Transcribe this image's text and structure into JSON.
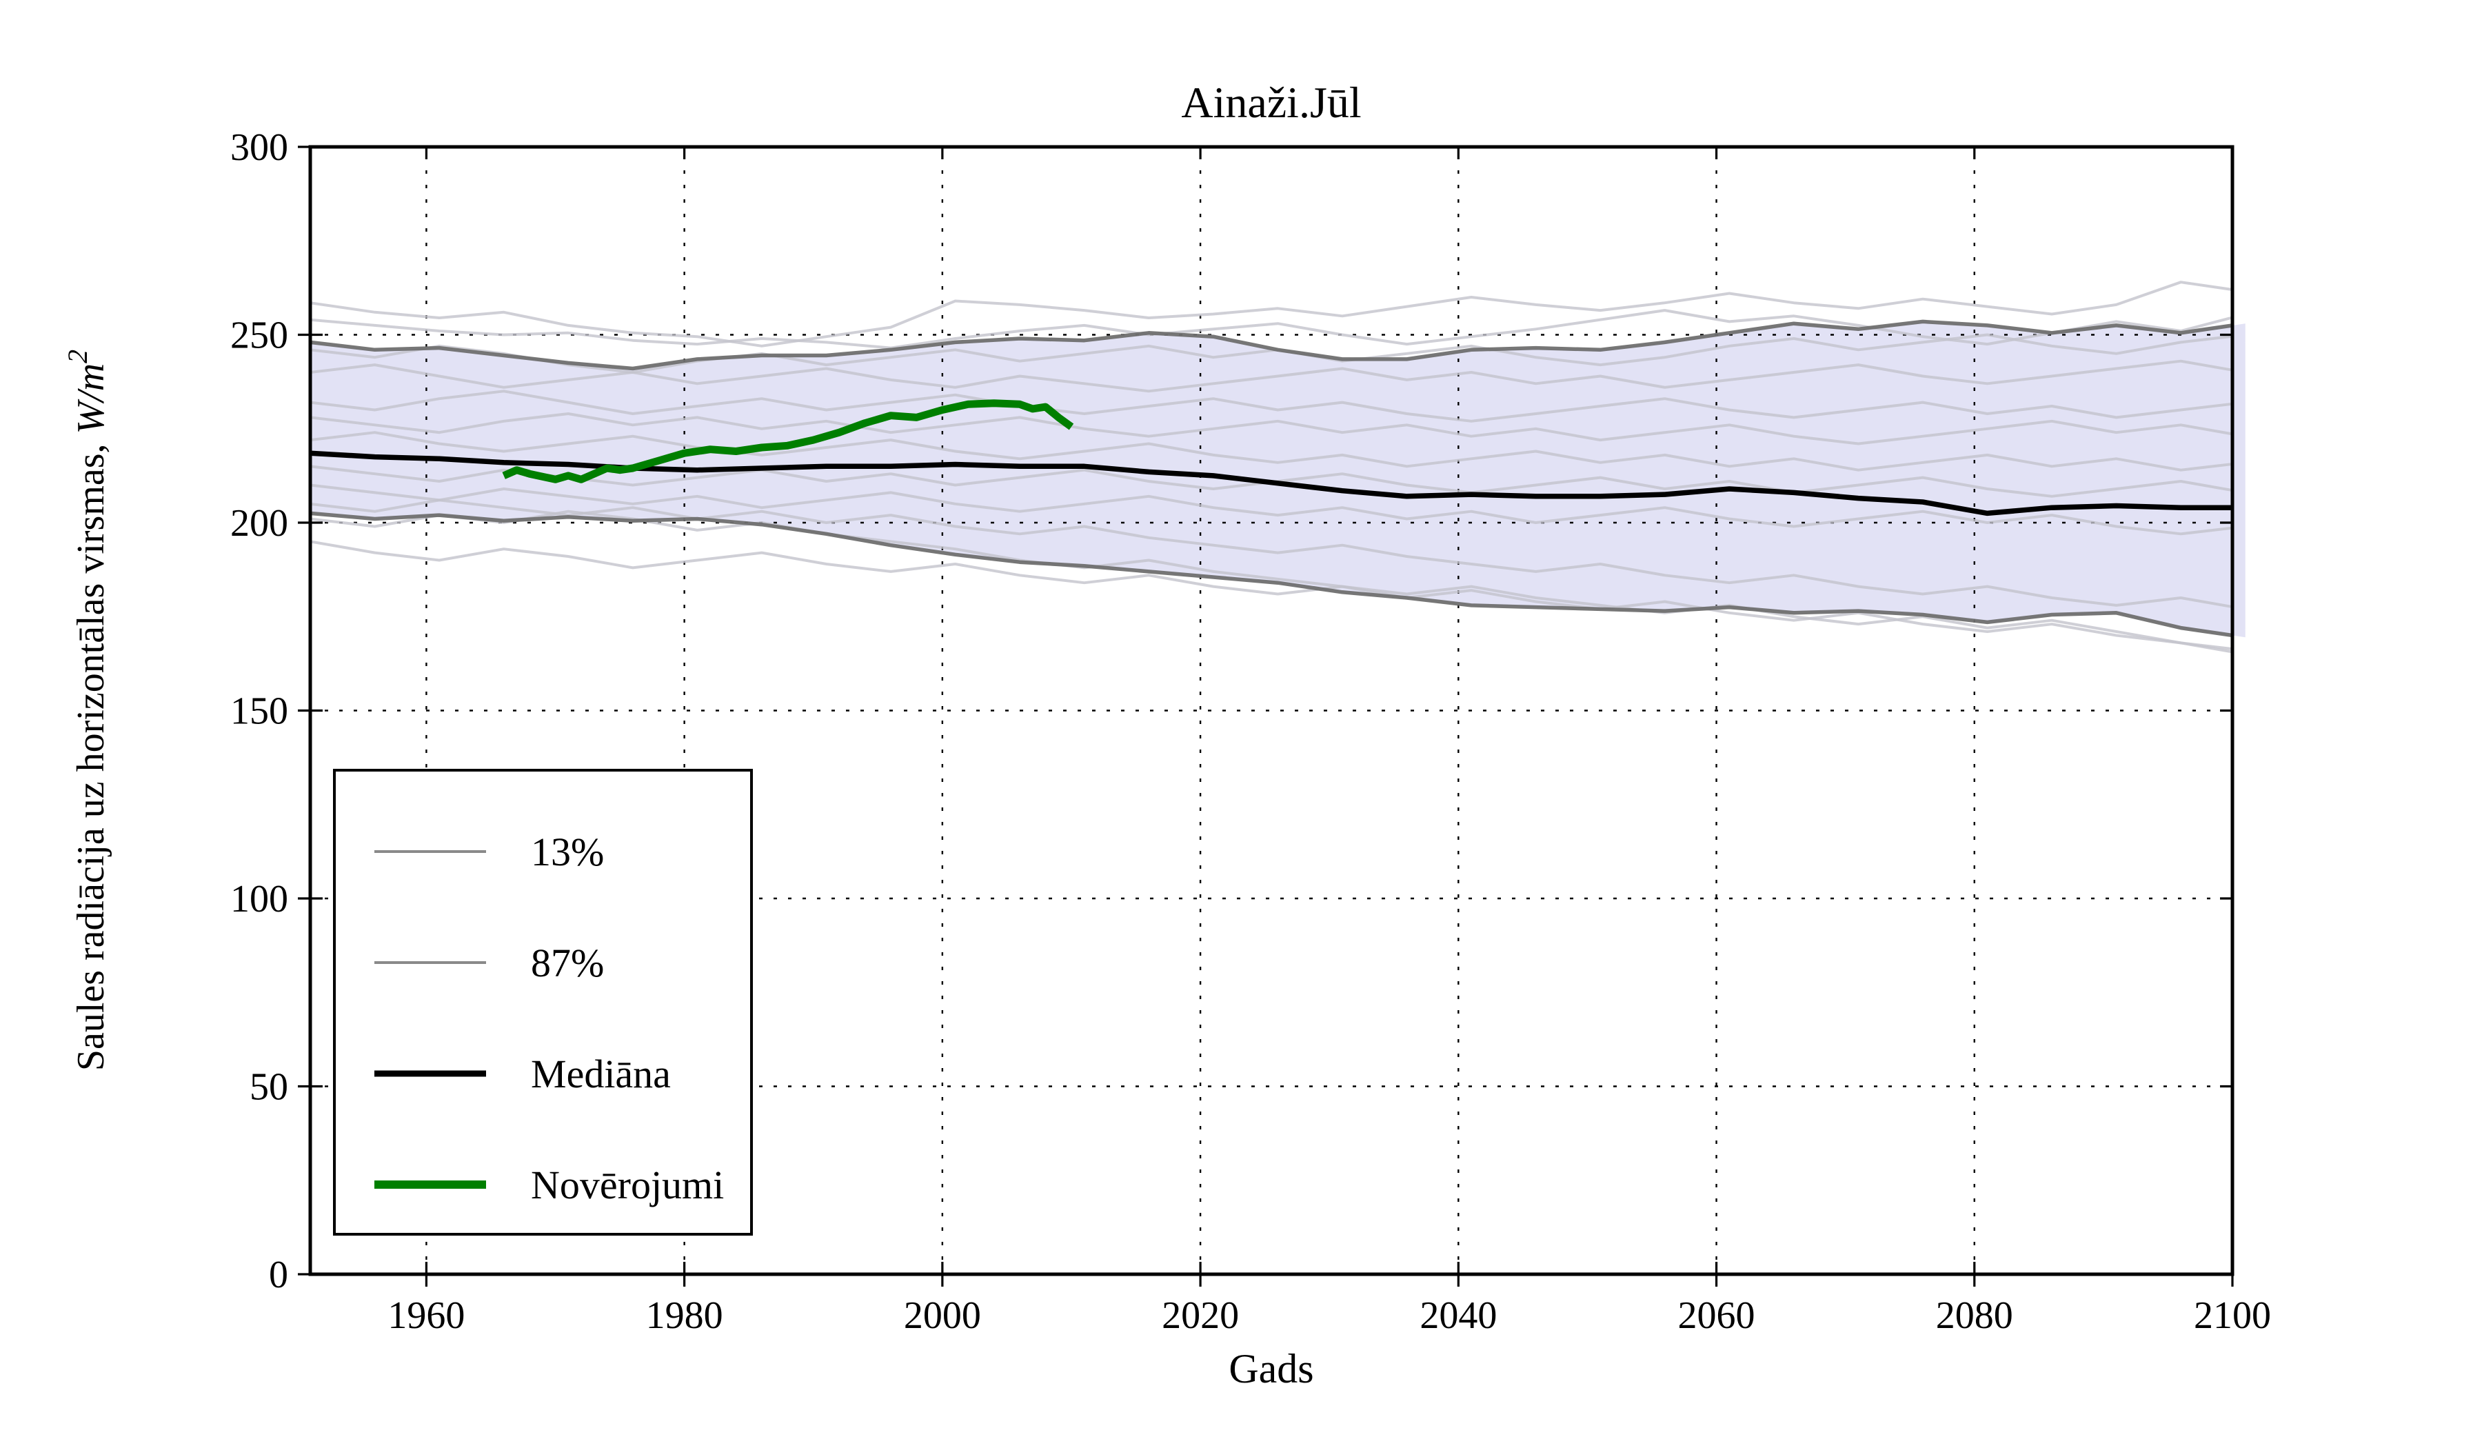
{
  "figure": {
    "title": "Ainaži.Jūl",
    "xlabel": "Gads",
    "ylabel_text": "Saules radiācija uz horizontālas virsmas, ",
    "ylabel_math": "W/m",
    "ylabel_exponent": "2"
  },
  "axes": {
    "xlim": [
      1951,
      2100
    ],
    "ylim": [
      0,
      300
    ],
    "xtick_labels": [
      "1960",
      "1980",
      "2000",
      "2020",
      "2040",
      "2060",
      "2080",
      "2100"
    ],
    "xticks": [
      1960,
      1980,
      2000,
      2020,
      2040,
      2060,
      2080,
      2100
    ],
    "ytick_labels": [
      "0",
      "50",
      "100",
      "150",
      "200",
      "250",
      "300"
    ],
    "yticks": [
      0,
      50,
      100,
      150,
      200,
      250,
      300
    ],
    "grid": true,
    "grid_style": "dotted"
  },
  "legend": {
    "position": "lower left",
    "entries": [
      {
        "label": "13%",
        "color": "#8a8a8a",
        "line_width": 4
      },
      {
        "label": "87%",
        "color": "#8a8a8a",
        "line_width": 4
      },
      {
        "label": "Mediāna",
        "color": "#000000",
        "line_width": 9
      },
      {
        "label": "Novērojumi",
        "color": "#007f00",
        "line_width": 12
      }
    ]
  },
  "colors": {
    "background": "#ffffff",
    "band_fill": "#e2e2f5",
    "percentile_line": "#6f6f6f",
    "ensemble_line": "#c3c3cc",
    "median_line": "#000000",
    "observations_line": "#007f00",
    "grid_line": "#000000",
    "frame": "#000000"
  },
  "chart_data": {
    "type": "line",
    "title": "Ainaži.Jūl",
    "xlabel": "Gads",
    "ylabel": "Saules radiācija uz horizontālas virsmas, W/m2",
    "xlim": [
      1951,
      2100
    ],
    "ylim": [
      0,
      300
    ],
    "legend_position": "lower left",
    "grid": true,
    "years_start": 1951,
    "years_step": 5,
    "band": {
      "between": [
        "87%",
        "13%"
      ],
      "fill": "#e2e2f5"
    },
    "percentile_13": [
      202.5,
      201,
      202,
      200.5,
      201.5,
      200.5,
      201,
      199.5,
      197,
      194,
      191.5,
      189.5,
      188.5,
      187,
      185.5,
      184,
      181.5,
      180,
      178,
      177.5,
      177,
      176.5,
      177.5,
      176,
      176.5,
      175.5,
      173.5,
      175.5,
      176,
      172,
      169.5
    ],
    "percentile_87": [
      248,
      246,
      246.5,
      244.5,
      242.5,
      241,
      243.5,
      244.5,
      244.5,
      246,
      248,
      249,
      248.5,
      250.5,
      249.5,
      246,
      243.5,
      243.5,
      246,
      246.5,
      246,
      248,
      250.5,
      253,
      251.5,
      253.5,
      252.5,
      250.5,
      252.5,
      250.5,
      253
    ],
    "median": [
      218.5,
      217.5,
      217,
      216,
      215.5,
      214.5,
      214,
      214.5,
      215,
      215,
      215.5,
      215,
      215,
      213.5,
      212.5,
      210.5,
      208.5,
      207,
      207.5,
      207,
      207,
      207.5,
      209,
      208,
      206.5,
      205.5,
      202.5,
      204,
      204.5,
      204,
      204
    ],
    "observations_years": [
      1966,
      1967,
      1968,
      1970,
      1971,
      1972,
      1973,
      1974,
      1975,
      1976,
      1978,
      1980,
      1982,
      1984,
      1986,
      1988,
      1990,
      1992,
      1994,
      1996,
      1998,
      2000,
      2002,
      2004,
      2006,
      2007,
      2008,
      2009,
      2010
    ],
    "observations": [
      212.5,
      214,
      213,
      211.5,
      212.5,
      211.5,
      213,
      214.5,
      214,
      214.5,
      216.5,
      218.5,
      219.5,
      219,
      220,
      220.5,
      222,
      224,
      226.5,
      228.5,
      228,
      230,
      231.5,
      231.8,
      231.5,
      230.3,
      230.8,
      228,
      225.5
    ],
    "ensemble_members": [
      [
        258.5,
        256,
        254.5,
        256,
        252.5,
        250.5,
        249.5,
        247,
        249.5,
        252,
        259,
        258,
        256.5,
        254.5,
        255.5,
        257,
        255,
        257.5,
        260,
        258,
        256.5,
        258.5,
        261,
        258.5,
        257,
        259.5,
        257.5,
        255.5,
        258,
        264,
        261.5
      ],
      [
        254,
        252.5,
        251,
        250,
        250.5,
        248.5,
        247.5,
        249,
        248,
        246.5,
        249,
        251,
        252.5,
        250,
        251.5,
        253,
        250,
        247.5,
        249.5,
        251.5,
        254,
        256.5,
        253.5,
        255,
        252.5,
        249.5,
        247.5,
        250.5,
        253.5,
        251,
        255.5
      ],
      [
        246,
        244,
        247,
        245,
        242,
        240,
        243,
        245,
        242,
        244,
        246,
        243,
        245,
        247,
        244,
        246,
        243,
        245,
        247,
        244,
        242,
        244,
        247,
        249,
        246,
        248,
        250,
        247,
        245,
        248,
        250
      ],
      [
        240,
        242,
        239,
        236,
        238,
        240,
        237,
        239,
        241,
        238,
        236,
        239,
        237,
        235,
        237,
        239,
        241,
        238,
        240,
        237,
        239,
        236,
        238,
        240,
        242,
        239,
        237,
        239,
        241,
        243,
        240
      ],
      [
        232,
        230,
        233,
        235,
        232,
        229,
        231,
        233,
        230,
        232,
        234,
        231,
        229,
        231,
        233,
        230,
        232,
        229,
        227,
        229,
        231,
        233,
        230,
        228,
        230,
        232,
        229,
        231,
        228,
        230,
        232
      ],
      [
        228,
        226,
        224,
        227,
        229,
        226,
        228,
        225,
        227,
        224,
        226,
        228,
        225,
        223,
        225,
        227,
        224,
        226,
        223,
        225,
        222,
        224,
        226,
        223,
        221,
        223,
        225,
        227,
        224,
        226,
        223
      ],
      [
        222,
        224,
        221,
        219,
        221,
        223,
        220,
        218,
        220,
        222,
        219,
        217,
        219,
        221,
        218,
        216,
        218,
        215,
        217,
        219,
        216,
        218,
        215,
        217,
        214,
        216,
        218,
        215,
        217,
        214,
        216
      ],
      [
        215,
        213,
        211,
        214,
        212,
        210,
        212,
        214,
        211,
        213,
        210,
        212,
        214,
        211,
        209,
        211,
        213,
        210,
        208,
        210,
        212,
        209,
        211,
        208,
        210,
        212,
        209,
        207,
        209,
        211,
        208
      ],
      [
        210,
        208,
        206,
        209,
        207,
        205,
        207,
        204,
        206,
        208,
        205,
        203,
        205,
        207,
        204,
        202,
        204,
        201,
        203,
        200,
        202,
        204,
        201,
        199,
        201,
        203,
        200,
        202,
        199,
        197,
        199
      ],
      [
        205,
        203,
        206,
        204,
        202,
        204,
        201,
        203,
        200,
        202,
        199,
        197,
        199,
        196,
        194,
        192,
        194,
        191,
        189,
        187,
        189,
        186,
        184,
        186,
        183,
        181,
        183,
        180,
        178,
        180,
        177
      ],
      [
        201,
        199,
        202,
        200,
        203,
        201,
        198,
        200,
        197,
        195,
        193,
        190,
        188,
        190,
        187,
        185,
        183,
        181,
        183,
        180,
        178,
        176,
        178,
        175,
        173,
        175,
        172,
        174,
        171,
        168,
        166
      ],
      [
        195,
        192,
        190,
        193,
        191,
        188,
        190,
        192,
        189,
        187,
        189,
        186,
        184,
        186,
        183,
        181,
        183,
        180,
        182,
        179,
        177,
        179,
        176,
        174,
        176,
        173,
        171,
        173,
        170,
        168,
        165
      ]
    ]
  }
}
